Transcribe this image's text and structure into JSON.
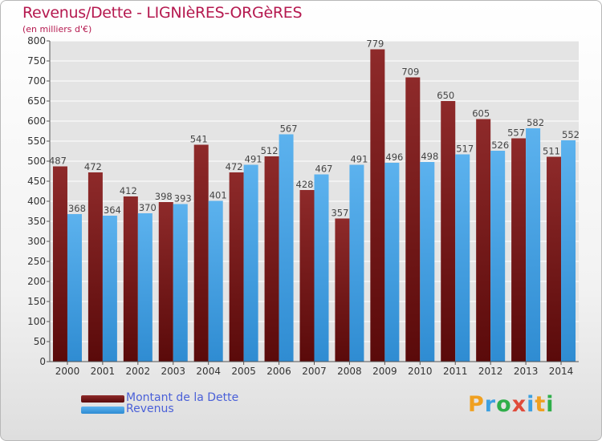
{
  "header": {
    "title": "Revenus/Dette - LIGNIèRES-ORGèRES",
    "subtitle": "(en milliers d'€)"
  },
  "logo": {
    "text": "Proxiti",
    "letters": [
      {
        "ch": "P",
        "color": "#f0a020"
      },
      {
        "ch": "r",
        "color": "#3da0e0"
      },
      {
        "ch": "o",
        "color": "#2fae4a"
      },
      {
        "ch": "x",
        "color": "#e04a3a"
      },
      {
        "ch": "i",
        "color": "#3da0e0"
      },
      {
        "ch": "t",
        "color": "#f0a020"
      },
      {
        "ch": "i",
        "color": "#2fae4a"
      }
    ]
  },
  "chart_data": {
    "type": "bar",
    "title": "Revenus/Dette - LIGNIèRES-ORGèRES",
    "subtitle": "(en milliers d'€)",
    "categories": [
      "2000",
      "2001",
      "2002",
      "2003",
      "2004",
      "2005",
      "2006",
      "2007",
      "2008",
      "2009",
      "2010",
      "2011",
      "2012",
      "2013",
      "2014"
    ],
    "series": [
      {
        "name": "Montant de la Dette",
        "color": "#7a1a1a",
        "values": [
          487,
          472,
          412,
          398,
          541,
          472,
          512,
          428,
          357,
          779,
          709,
          650,
          605,
          557,
          511
        ]
      },
      {
        "name": "Revenus",
        "color": "#3d9ee0",
        "values": [
          368,
          364,
          370,
          393,
          401,
          491,
          567,
          467,
          491,
          496,
          498,
          517,
          526,
          582,
          552
        ]
      }
    ],
    "ylim": [
      0,
      800
    ],
    "yticks": [
      0,
      50,
      100,
      150,
      200,
      250,
      300,
      350,
      400,
      450,
      500,
      550,
      600,
      650,
      700,
      750,
      800
    ],
    "grid": true,
    "legend": "bottom-left"
  }
}
